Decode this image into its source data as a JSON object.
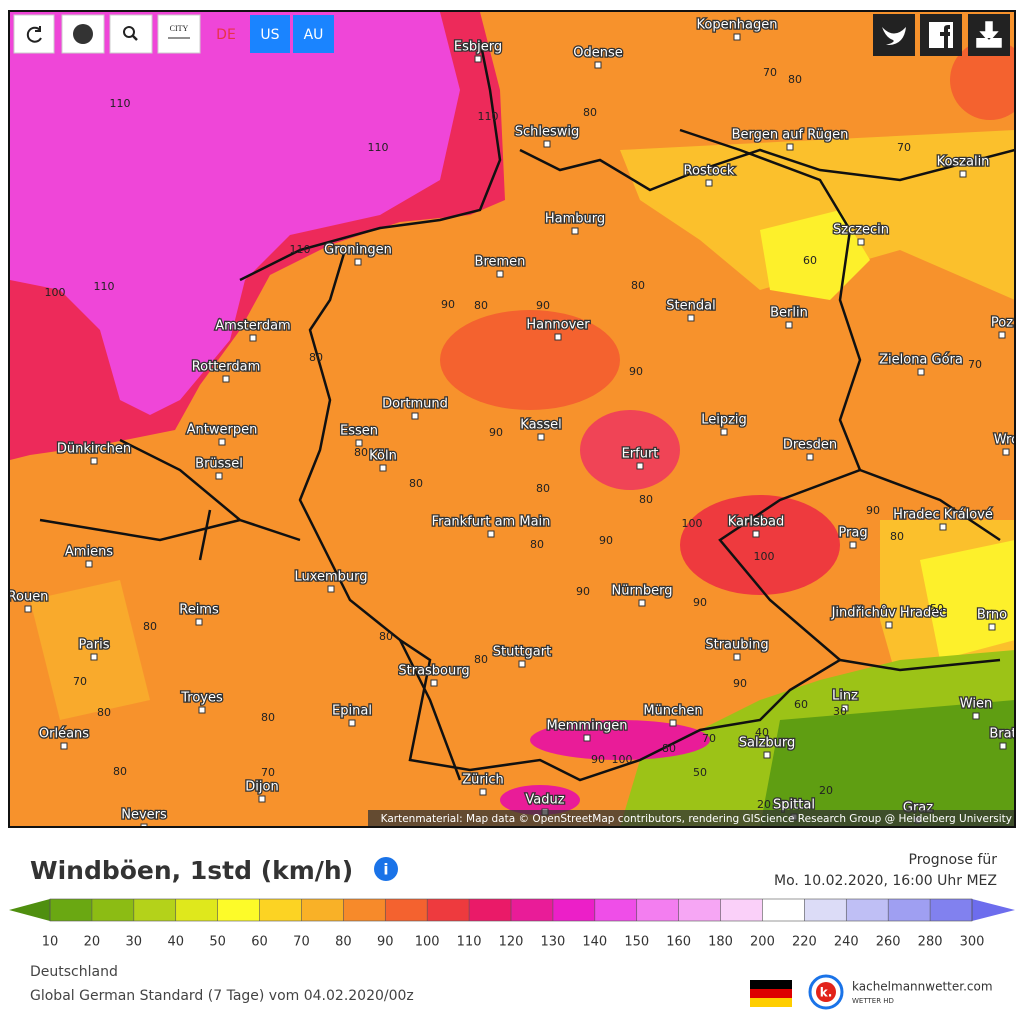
{
  "toolbar": {
    "city_button": "CITY",
    "region_buttons": [
      "DE",
      "US",
      "AU"
    ]
  },
  "map": {
    "cities": [
      "Kopenhagen",
      "Esbjerg",
      "Odense",
      "Schleswig",
      "Bergen auf Rügen",
      "Rostock",
      "Koszalin",
      "Hamburg",
      "Szczecin",
      "Groningen",
      "Bremen",
      "Amsterdam",
      "Stendal",
      "Berlin",
      "Hannover",
      "Zielona Góra",
      "Rotterdam",
      "Dortmund",
      "Antwerpen",
      "Essen",
      "Kassel",
      "Leipzig",
      "Dünkirchen",
      "Brüssel",
      "Köln",
      "Erfurt",
      "Dresden",
      "Karlsbad",
      "Prag",
      "Hradec Králové",
      "Frankfurt am Main",
      "Amiens",
      "Luxemburg",
      "Nürnberg",
      "Jindřichův Hradec",
      "Brno",
      "Reims",
      "Paris",
      "Stuttgart",
      "Straubing",
      "Strasbourg",
      "Troyes",
      "Linz",
      "Wien",
      "Epinal",
      "München",
      "Memmingen",
      "Orléans",
      "Salzburg",
      "Zürich",
      "Dijon",
      "Vaduz",
      "Nevers",
      "Spittal",
      "Graz",
      "Rouen",
      "Poz",
      "Wrc",
      "Brat"
    ],
    "contour_labels": [
      110,
      110,
      110,
      100,
      110,
      110,
      80,
      70,
      80,
      70,
      60,
      80,
      90,
      80,
      90,
      80,
      90,
      70,
      90,
      80,
      80,
      80,
      80,
      100,
      90,
      80,
      100,
      90,
      80,
      50,
      90,
      90,
      80,
      80,
      80,
      70,
      90,
      80,
      60,
      80,
      70,
      80,
      90,
      100,
      20,
      70,
      80,
      50,
      40,
      20,
      30
    ],
    "attribution": "Kartenmaterial: Map data © OpenStreetMap contributors, rendering GIScience Research Group @ Heidelberg University"
  },
  "legend": {
    "title": "Windböen, 1std (km/h)",
    "forecast_label": "Prognose für",
    "forecast_time": "Mo. 10.02.2020, 16:00 Uhr MEZ",
    "ticks": [
      10,
      20,
      30,
      40,
      50,
      60,
      70,
      80,
      90,
      100,
      110,
      120,
      130,
      140,
      150,
      160,
      180,
      200,
      220,
      240,
      260,
      280,
      300
    ],
    "colors": [
      "#4f8f0f",
      "#6aa812",
      "#8cbc14",
      "#b4d21a",
      "#dfe81c",
      "#fdfb29",
      "#fcd323",
      "#f9b127",
      "#f78a2a",
      "#f4622f",
      "#ee3a3e",
      "#ea1a68",
      "#e91c98",
      "#ec1fc8",
      "#ef4ee8",
      "#f37ef0",
      "#f6a6f4",
      "#fad0f9",
      "#ffffff",
      "#dcdcf7",
      "#bfbff5",
      "#9f9ff2",
      "#8181ef",
      "#6d6ded"
    ]
  },
  "footer": {
    "region": "Deutschland",
    "model": "Global German Standard (7 Tage) vom 04.02.2020/00z",
    "logo_letter": "k.",
    "brand": "kachelmannwetter.com",
    "brand_sub": "WETTER HD"
  }
}
